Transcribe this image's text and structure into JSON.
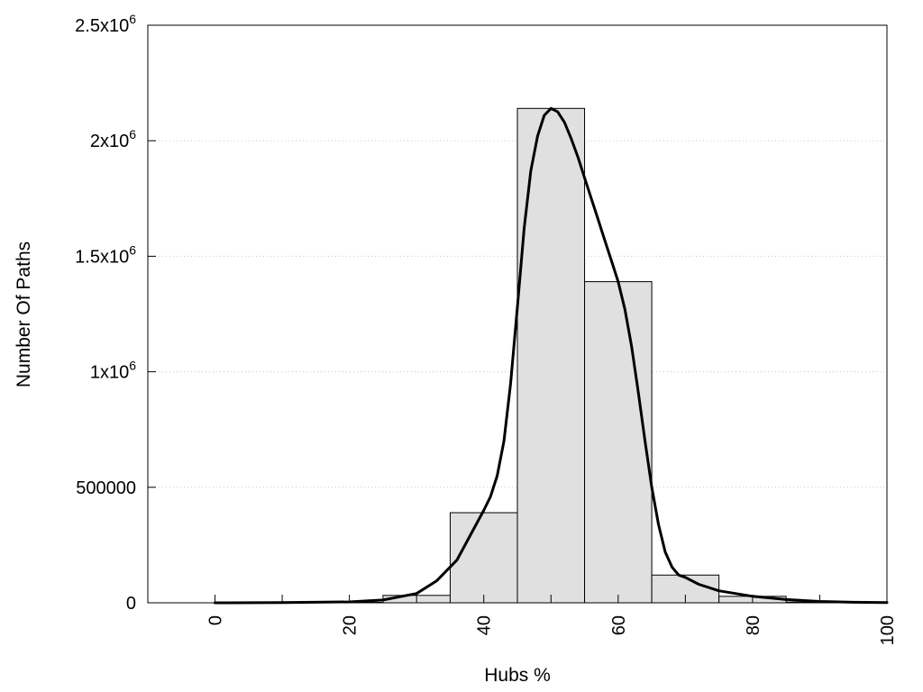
{
  "chart_data": {
    "type": "bar",
    "title": "",
    "xlabel": "Hubs %",
    "ylabel": "Number Of Paths",
    "xlim": [
      -10,
      100
    ],
    "ylim": [
      0,
      2500000
    ],
    "grid": {
      "y": true,
      "x": false,
      "style": "dotted"
    },
    "legend": "none",
    "bin_width": 10,
    "bar_color": "#e0e0e0",
    "bar_edge_color": "#000000",
    "line_color": "#000000",
    "x_ticks": [
      {
        "value": 0,
        "label": "0"
      },
      {
        "value": 20,
        "label": "20"
      },
      {
        "value": 40,
        "label": "40"
      },
      {
        "value": 60,
        "label": "60"
      },
      {
        "value": 80,
        "label": "80"
      },
      {
        "value": 100,
        "label": "100"
      }
    ],
    "x_minor_ticks": [
      10,
      30,
      50,
      70,
      90
    ],
    "y_ticks": [
      {
        "value": 0,
        "base": "0",
        "exp": ""
      },
      {
        "value": 500000,
        "base": "500000",
        "exp": ""
      },
      {
        "value": 1000000,
        "base": "1x10",
        "exp": "6"
      },
      {
        "value": 1500000,
        "base": "1.5x10",
        "exp": "6"
      },
      {
        "value": 2000000,
        "base": "2x10",
        "exp": "6"
      },
      {
        "value": 2500000,
        "base": "2.5x10",
        "exp": "6"
      }
    ],
    "bars": [
      {
        "center": 0,
        "value": 0
      },
      {
        "center": 10,
        "value": 0
      },
      {
        "center": 20,
        "value": 2000
      },
      {
        "center": 30,
        "value": 32000
      },
      {
        "center": 40,
        "value": 390000
      },
      {
        "center": 50,
        "value": 2140000
      },
      {
        "center": 60,
        "value": 1390000
      },
      {
        "center": 70,
        "value": 120000
      },
      {
        "center": 80,
        "value": 28000
      },
      {
        "center": 90,
        "value": 3000
      }
    ],
    "curve": [
      [
        0,
        0
      ],
      [
        10,
        800
      ],
      [
        20,
        4000
      ],
      [
        25,
        12000
      ],
      [
        30,
        40000
      ],
      [
        33,
        95000
      ],
      [
        36,
        185000
      ],
      [
        40,
        400000
      ],
      [
        41,
        460000
      ],
      [
        42,
        550000
      ],
      [
        43,
        700000
      ],
      [
        44,
        950000
      ],
      [
        45,
        1280000
      ],
      [
        46,
        1620000
      ],
      [
        47,
        1870000
      ],
      [
        48,
        2020000
      ],
      [
        49,
        2110000
      ],
      [
        50,
        2140000
      ],
      [
        51,
        2125000
      ],
      [
        52,
        2080000
      ],
      [
        53,
        2010000
      ],
      [
        54,
        1930000
      ],
      [
        55,
        1840000
      ],
      [
        56,
        1750000
      ],
      [
        57,
        1660000
      ],
      [
        58,
        1570000
      ],
      [
        59,
        1480000
      ],
      [
        60,
        1390000
      ],
      [
        61,
        1270000
      ],
      [
        62,
        1110000
      ],
      [
        63,
        910000
      ],
      [
        64,
        700000
      ],
      [
        65,
        500000
      ],
      [
        66,
        340000
      ],
      [
        67,
        220000
      ],
      [
        68,
        155000
      ],
      [
        69,
        120000
      ],
      [
        70,
        110000
      ],
      [
        72,
        80000
      ],
      [
        75,
        52000
      ],
      [
        80,
        28000
      ],
      [
        85,
        14000
      ],
      [
        90,
        6000
      ],
      [
        95,
        2500
      ],
      [
        100,
        1000
      ]
    ]
  }
}
